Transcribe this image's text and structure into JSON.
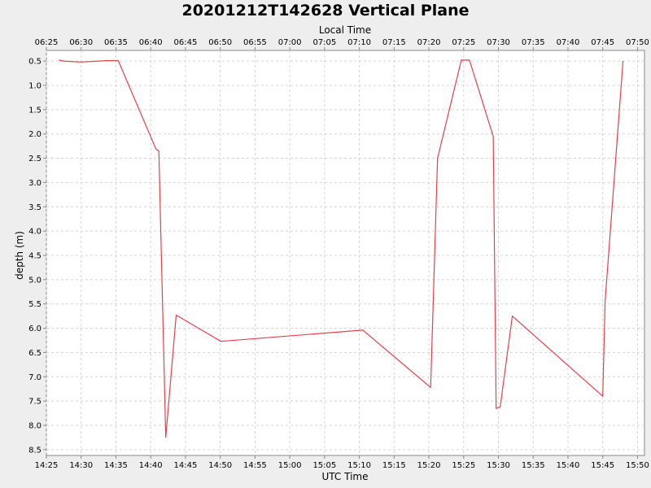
{
  "chart_data": {
    "type": "line",
    "title": "20201212T142628 Vertical Plane",
    "xlabel": "UTC Time",
    "x2label": "Local Time",
    "ylabel": "depth (m)",
    "x_ticks": [
      "14:25",
      "14:30",
      "14:35",
      "14:40",
      "14:45",
      "14:50",
      "14:55",
      "15:00",
      "15:05",
      "15:10",
      "15:15",
      "15:20",
      "15:25",
      "15:30",
      "15:35",
      "15:40",
      "15:45",
      "15:50"
    ],
    "x2_ticks": [
      "06:25",
      "06:30",
      "06:35",
      "06:40",
      "06:45",
      "06:50",
      "06:55",
      "07:00",
      "07:05",
      "07:10",
      "07:15",
      "07:20",
      "07:25",
      "07:30",
      "07:35",
      "07:40",
      "07:45",
      "07:50"
    ],
    "y_ticks": [
      "0.5",
      "1.0",
      "1.5",
      "2.0",
      "2.5",
      "3.0",
      "3.5",
      "4.0",
      "4.5",
      "5.0",
      "5.5",
      "6.0",
      "6.5",
      "7.0",
      "7.5",
      "8.0",
      "8.5"
    ],
    "xlim": [
      "14:25:00",
      "15:51:00"
    ],
    "ylim": [
      8.62,
      0.28
    ],
    "y_inverted": true,
    "grid": true,
    "colors": {
      "series": "#e8404a",
      "grid": "#d4d4d4",
      "plot_bg": "#ffffff",
      "page_bg": "#eeeeee"
    },
    "series": [
      {
        "x": [
          "14:26:48",
          "14:27:30",
          "14:30:00",
          "14:33:45",
          "14:35:20",
          "14:40:45",
          "14:41:10",
          "14:42:10",
          "14:43:40",
          "14:50:05",
          "15:10:30",
          "15:20:15",
          "15:21:15",
          "15:24:40",
          "15:25:50",
          "15:29:15",
          "15:29:40",
          "15:30:15",
          "15:32:00",
          "15:45:00",
          "15:45:20",
          "15:47:55"
        ],
        "y": [
          0.48,
          0.5,
          0.52,
          0.49,
          0.49,
          2.31,
          2.35,
          8.25,
          5.73,
          6.27,
          6.04,
          7.22,
          2.5,
          0.48,
          0.48,
          2.05,
          7.65,
          7.62,
          5.75,
          7.4,
          5.45,
          0.5
        ]
      }
    ]
  }
}
